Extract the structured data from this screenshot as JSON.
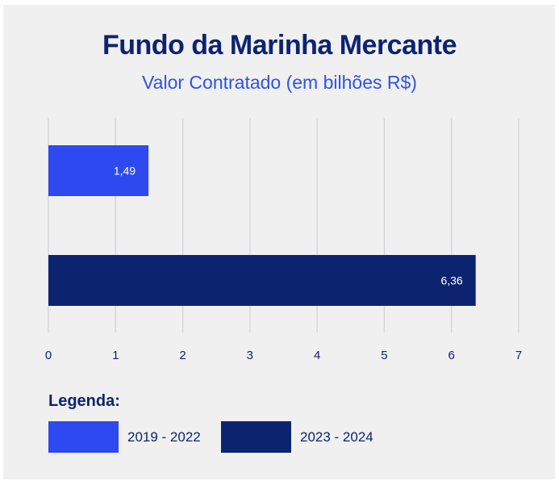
{
  "chart_data": {
    "type": "bar",
    "orientation": "horizontal",
    "title": "Fundo da Marinha Mercante",
    "subtitle": "Valor Contratado (em bilhões R$)",
    "xlabel": "",
    "ylabel": "",
    "xlim": [
      0,
      7
    ],
    "x_ticks": [
      "0",
      "1",
      "2",
      "3",
      "4",
      "5",
      "6",
      "7"
    ],
    "grid": "vertical",
    "series": [
      {
        "name": "2019 - 2022",
        "value": 1.49,
        "label": "1,49",
        "color": "#2e49f0"
      },
      {
        "name": "2023 - 2024",
        "value": 6.36,
        "label": "6,36",
        "color": "#0c2470"
      }
    ],
    "legend_title": "Legenda:",
    "legend_position": "bottom-left"
  }
}
